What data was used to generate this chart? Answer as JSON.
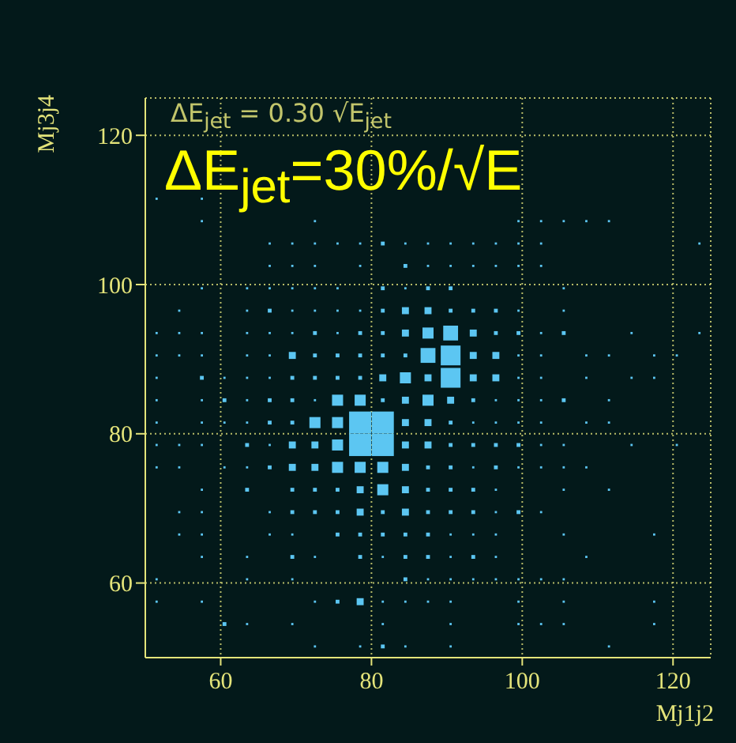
{
  "chart_data": {
    "type": "bubble",
    "xlabel": "Mj1j2",
    "ylabel": "Mj3j4",
    "annotations": [
      "ΔE$_{jet}$ = 0.30 √E$_{jet}$",
      "ΔE$_{jet}$=30%/√E"
    ],
    "xlim": [
      50,
      125
    ],
    "ylim": [
      50,
      125
    ],
    "xticks": [
      60,
      80,
      100,
      120
    ],
    "yticks": [
      60,
      80,
      100,
      120
    ],
    "grid": true,
    "marker": "square",
    "legend": false,
    "series": [
      {
        "color": "#5cc6f2",
        "x": [
          51.5,
          57.5
        ],
        "values": [
          111.5,
          111.5
        ],
        "sizes": [
          0.01,
          0.01
        ]
      },
      {
        "color": "#5cc6f2",
        "x": [
          57.5,
          72.5,
          99.5,
          102.5,
          105.5,
          108.5,
          111.5
        ],
        "values": [
          108.5,
          108.5,
          108.5,
          108.5,
          108.5,
          108.5,
          108.5
        ],
        "sizes": [
          0.01,
          0.01,
          0.01,
          0.01,
          0.01,
          0.01,
          0.01
        ]
      },
      {
        "color": "#5cc6f2",
        "x": [
          66.5,
          69.5,
          72.5,
          75.5,
          78.5,
          81.5,
          84.5,
          87.5,
          90.5,
          93.5,
          96.5,
          99.5,
          102.5,
          123.5
        ],
        "values": [
          105.5,
          105.5,
          105.5,
          105.5,
          105.5,
          105.5,
          105.5,
          105.5,
          105.5,
          105.5,
          105.5,
          105.5,
          105.5,
          105.5
        ],
        "sizes": [
          0.01,
          0.01,
          0.01,
          0.01,
          0.01,
          0.03,
          0.01,
          0.01,
          0.01,
          0.01,
          0.01,
          0.01,
          0.01,
          0.01
        ]
      },
      {
        "color": "#5cc6f2",
        "x": [
          66.5,
          69.5,
          72.5,
          78.5,
          84.5,
          87.5,
          90.5,
          93.5,
          96.5,
          99.5,
          102.5
        ],
        "values": [
          102.5,
          102.5,
          102.5,
          102.5,
          102.5,
          102.5,
          102.5,
          102.5,
          102.5,
          102.5,
          102.5
        ],
        "sizes": [
          0.01,
          0.01,
          0.01,
          0.01,
          0.03,
          0.01,
          0.01,
          0.01,
          0.01,
          0.01,
          0.01
        ]
      },
      {
        "color": "#5cc6f2",
        "x": [
          57.5,
          63.5,
          66.5,
          69.5,
          72.5,
          75.5,
          81.5,
          84.5,
          87.5,
          90.5,
          105.5
        ],
        "values": [
          99.5,
          99.5,
          99.5,
          99.5,
          99.5,
          99.5,
          99.5,
          99.5,
          99.5,
          99.5,
          99.5
        ],
        "sizes": [
          0.01,
          0.01,
          0.01,
          0.01,
          0.01,
          0.01,
          0.03,
          0.01,
          0.03,
          0.03,
          0.01
        ]
      },
      {
        "color": "#5cc6f2",
        "x": [
          54.5,
          63.5,
          66.5,
          69.5,
          72.5,
          75.5,
          78.5,
          81.5,
          84.5,
          87.5,
          90.5,
          93.5,
          96.5,
          99.5,
          105.5
        ],
        "values": [
          96.5,
          96.5,
          96.5,
          96.5,
          96.5,
          96.5,
          96.5,
          96.5,
          96.5,
          96.5,
          96.5,
          96.5,
          96.5,
          96.5,
          96.5
        ],
        "sizes": [
          0.01,
          0.01,
          0.03,
          0.01,
          0.01,
          0.01,
          0.01,
          0.03,
          0.1,
          0.1,
          0.03,
          0.03,
          0.03,
          0.01,
          0.01
        ]
      },
      {
        "color": "#5cc6f2",
        "x": [
          51.5,
          54.5,
          57.5,
          63.5,
          66.5,
          69.5,
          72.5,
          75.5,
          78.5,
          81.5,
          84.5,
          87.5,
          90.5,
          93.5,
          96.5,
          99.5,
          102.5,
          105.5,
          114.5,
          123.5
        ],
        "values": [
          93.5,
          93.5,
          93.5,
          93.5,
          93.5,
          93.5,
          93.5,
          93.5,
          93.5,
          93.5,
          93.5,
          93.5,
          93.5,
          93.5,
          93.5,
          93.5,
          93.5,
          93.5,
          93.5,
          93.5
        ],
        "sizes": [
          0.01,
          0.01,
          0.01,
          0.01,
          0.01,
          0.01,
          0.03,
          0.01,
          0.03,
          0.03,
          0.1,
          0.25,
          0.45,
          0.1,
          0.03,
          0.03,
          0.01,
          0.03,
          0.01,
          0.01
        ]
      },
      {
        "color": "#5cc6f2",
        "x": [
          51.5,
          54.5,
          57.5,
          63.5,
          66.5,
          69.5,
          72.5,
          75.5,
          78.5,
          81.5,
          84.5,
          87.5,
          90.5,
          93.5,
          96.5,
          99.5,
          102.5,
          108.5,
          111.5,
          117.5,
          120.5
        ],
        "values": [
          90.5,
          90.5,
          90.5,
          90.5,
          90.5,
          90.5,
          90.5,
          90.5,
          90.5,
          90.5,
          90.5,
          90.5,
          90.5,
          90.5,
          90.5,
          90.5,
          90.5,
          90.5,
          90.5,
          90.5,
          90.5
        ],
        "sizes": [
          0.01,
          0.01,
          0.01,
          0.01,
          0.01,
          0.1,
          0.03,
          0.03,
          0.03,
          0.03,
          0.03,
          0.45,
          0.8,
          0.1,
          0.1,
          0.01,
          0.01,
          0.01,
          0.01,
          0.01,
          0.01
        ]
      },
      {
        "color": "#5cc6f2",
        "x": [
          51.5,
          57.5,
          60.5,
          63.5,
          66.5,
          69.5,
          72.5,
          75.5,
          78.5,
          81.5,
          84.5,
          87.5,
          90.5,
          93.5,
          96.5,
          99.5,
          102.5,
          108.5,
          114.5,
          117.5
        ],
        "values": [
          87.5,
          87.5,
          87.5,
          87.5,
          87.5,
          87.5,
          87.5,
          87.5,
          87.5,
          87.5,
          87.5,
          87.5,
          87.5,
          87.5,
          87.5,
          87.5,
          87.5,
          87.5,
          87.5,
          87.5
        ],
        "sizes": [
          0.01,
          0.03,
          0.01,
          0.01,
          0.01,
          0.03,
          0.03,
          0.03,
          0.03,
          0.1,
          0.25,
          0.1,
          0.8,
          0.1,
          0.1,
          0.01,
          0.01,
          0.01,
          0.01,
          0.01
        ]
      },
      {
        "color": "#5cc6f2",
        "x": [
          51.5,
          57.5,
          60.5,
          63.5,
          66.5,
          69.5,
          72.5,
          75.5,
          78.5,
          81.5,
          84.5,
          87.5,
          90.5,
          93.5,
          96.5,
          99.5,
          102.5,
          105.5,
          111.5
        ],
        "values": [
          84.5,
          84.5,
          84.5,
          84.5,
          84.5,
          84.5,
          84.5,
          84.5,
          84.5,
          84.5,
          84.5,
          84.5,
          84.5,
          84.5,
          84.5,
          84.5,
          84.5,
          84.5,
          84.5
        ],
        "sizes": [
          0.01,
          0.01,
          0.03,
          0.01,
          0.03,
          0.03,
          0.01,
          0.25,
          0.25,
          0.03,
          0.1,
          0.25,
          0.1,
          0.03,
          0.01,
          0.01,
          0.01,
          0.03,
          0.01
        ]
      },
      {
        "color": "#5cc6f2",
        "x": [
          51.5,
          57.5,
          60.5,
          63.5,
          66.5,
          69.5,
          72.5,
          75.5,
          78.5,
          81.5,
          84.5,
          87.5,
          90.5,
          93.5,
          96.5,
          99.5,
          102.5,
          108.5,
          111.5
        ],
        "values": [
          81.5,
          81.5,
          81.5,
          81.5,
          81.5,
          81.5,
          81.5,
          81.5,
          81.5,
          81.5,
          81.5,
          81.5,
          81.5,
          81.5,
          81.5,
          81.5,
          81.5,
          81.5,
          81.5
        ],
        "sizes": [
          0.01,
          0.01,
          0.01,
          0.01,
          0.03,
          0.03,
          0.25,
          0.25,
          1,
          1,
          0.1,
          0.1,
          0.03,
          0.01,
          0.01,
          0.01,
          0.01,
          0.01,
          0.01
        ]
      },
      {
        "color": "#5cc6f2",
        "x": [
          51.5,
          54.5,
          57.5,
          63.5,
          66.5,
          69.5,
          72.5,
          75.5,
          78.5,
          81.5,
          84.5,
          87.5,
          90.5,
          93.5,
          96.5,
          99.5,
          102.5,
          105.5,
          114.5,
          120.5
        ],
        "values": [
          78.5,
          78.5,
          78.5,
          78.5,
          78.5,
          78.5,
          78.5,
          78.5,
          78.5,
          78.5,
          78.5,
          78.5,
          78.5,
          78.5,
          78.5,
          78.5,
          78.5,
          78.5,
          78.5,
          78.5
        ],
        "sizes": [
          0.01,
          0.01,
          0.01,
          0.03,
          0.01,
          0.1,
          0.1,
          0.25,
          1,
          1,
          0.1,
          0.1,
          0.03,
          0.03,
          0.03,
          0.03,
          0.01,
          0.01,
          0.01,
          0.01
        ]
      },
      {
        "color": "#5cc6f2",
        "x": [
          51.5,
          54.5,
          60.5,
          63.5,
          66.5,
          69.5,
          72.5,
          75.5,
          78.5,
          81.5,
          84.5,
          87.5,
          90.5,
          93.5,
          96.5,
          99.5,
          102.5,
          105.5,
          108.5
        ],
        "values": [
          75.5,
          75.5,
          75.5,
          75.5,
          75.5,
          75.5,
          75.5,
          75.5,
          75.5,
          75.5,
          75.5,
          75.5,
          75.5,
          75.5,
          75.5,
          75.5,
          75.5,
          75.5,
          75.5
        ],
        "sizes": [
          0.01,
          0.01,
          0.01,
          0.01,
          0.03,
          0.1,
          0.1,
          0.25,
          0.25,
          0.25,
          0.1,
          0.03,
          0.03,
          0.01,
          0.03,
          0.01,
          0.01,
          0.01,
          0.01
        ]
      },
      {
        "color": "#5cc6f2",
        "x": [
          57.5,
          63.5,
          69.5,
          72.5,
          75.5,
          78.5,
          81.5,
          84.5,
          87.5,
          90.5,
          93.5,
          96.5,
          105.5,
          111.5
        ],
        "values": [
          72.5,
          72.5,
          72.5,
          72.5,
          72.5,
          72.5,
          72.5,
          72.5,
          72.5,
          72.5,
          72.5,
          72.5,
          72.5,
          72.5
        ],
        "sizes": [
          0.01,
          0.03,
          0.03,
          0.03,
          0.03,
          0.1,
          0.25,
          0.1,
          0.03,
          0.03,
          0.03,
          0.01,
          0.01,
          0.01
        ]
      },
      {
        "color": "#5cc6f2",
        "x": [
          54.5,
          57.5,
          66.5,
          69.5,
          72.5,
          75.5,
          78.5,
          81.5,
          84.5,
          87.5,
          90.5,
          93.5,
          96.5,
          99.5,
          102.5
        ],
        "values": [
          69.5,
          69.5,
          69.5,
          69.5,
          69.5,
          69.5,
          69.5,
          69.5,
          69.5,
          69.5,
          69.5,
          69.5,
          69.5,
          69.5,
          69.5
        ],
        "sizes": [
          0.01,
          0.01,
          0.01,
          0.03,
          0.03,
          0.03,
          0.1,
          0.03,
          0.1,
          0.03,
          0.03,
          0.03,
          0.01,
          0.03,
          0.01
        ]
      },
      {
        "color": "#5cc6f2",
        "x": [
          54.5,
          57.5,
          66.5,
          69.5,
          75.5,
          78.5,
          81.5,
          84.5,
          87.5,
          90.5,
          93.5,
          96.5,
          105.5,
          117.5
        ],
        "values": [
          66.5,
          66.5,
          66.5,
          66.5,
          66.5,
          66.5,
          66.5,
          66.5,
          66.5,
          66.5,
          66.5,
          66.5,
          66.5,
          66.5
        ],
        "sizes": [
          0.01,
          0.01,
          0.01,
          0.01,
          0.03,
          0.03,
          0.03,
          0.03,
          0.03,
          0.01,
          0.01,
          0.01,
          0.01,
          0.01
        ]
      },
      {
        "color": "#5cc6f2",
        "x": [
          57.5,
          63.5,
          69.5,
          72.5,
          78.5,
          81.5,
          84.5,
          87.5,
          90.5,
          93.5,
          96.5,
          108.5
        ],
        "values": [
          63.5,
          63.5,
          63.5,
          63.5,
          63.5,
          63.5,
          63.5,
          63.5,
          63.5,
          63.5,
          63.5,
          63.5
        ],
        "sizes": [
          0.01,
          0.01,
          0.03,
          0.01,
          0.03,
          0.01,
          0.03,
          0.03,
          0.01,
          0.03,
          0.01,
          0.01
        ]
      },
      {
        "color": "#5cc6f2",
        "x": [
          51.5,
          63.5,
          69.5,
          84.5,
          87.5,
          90.5,
          93.5,
          96.5,
          99.5,
          102.5,
          105.5
        ],
        "values": [
          60.5,
          60.5,
          60.5,
          60.5,
          60.5,
          60.5,
          60.5,
          60.5,
          60.5,
          60.5,
          60.5
        ],
        "sizes": [
          0.01,
          0.01,
          0.01,
          0.03,
          0.01,
          0.01,
          0.01,
          0.01,
          0.01,
          0.01,
          0.01
        ]
      },
      {
        "color": "#5cc6f2",
        "x": [
          51.5,
          57.5,
          72.5,
          75.5,
          78.5,
          81.5,
          84.5,
          87.5,
          90.5,
          99.5,
          105.5,
          117.5
        ],
        "values": [
          57.5,
          57.5,
          57.5,
          57.5,
          57.5,
          57.5,
          57.5,
          57.5,
          57.5,
          57.5,
          57.5,
          57.5
        ],
        "sizes": [
          0.01,
          0.01,
          0.01,
          0.03,
          0.1,
          0.01,
          0.01,
          0.01,
          0.01,
          0.01,
          0.01,
          0.01
        ]
      },
      {
        "color": "#5cc6f2",
        "x": [
          60.5,
          63.5,
          69.5,
          81.5,
          90.5,
          99.5,
          102.5,
          105.5,
          117.5
        ],
        "values": [
          54.5,
          54.5,
          54.5,
          54.5,
          54.5,
          54.5,
          54.5,
          54.5,
          54.5
        ],
        "sizes": [
          0.03,
          0.01,
          0.01,
          0.01,
          0.01,
          0.01,
          0.01,
          0.01,
          0.01
        ]
      },
      {
        "color": "#5cc6f2",
        "x": [
          72.5,
          78.5,
          81.5,
          84.5,
          90.5,
          111.5
        ],
        "values": [
          51.5,
          51.5,
          51.5,
          51.5,
          51.5,
          51.5
        ],
        "sizes": [
          0.01,
          0.01,
          0.03,
          0.01,
          0.01,
          0.01
        ]
      }
    ]
  }
}
